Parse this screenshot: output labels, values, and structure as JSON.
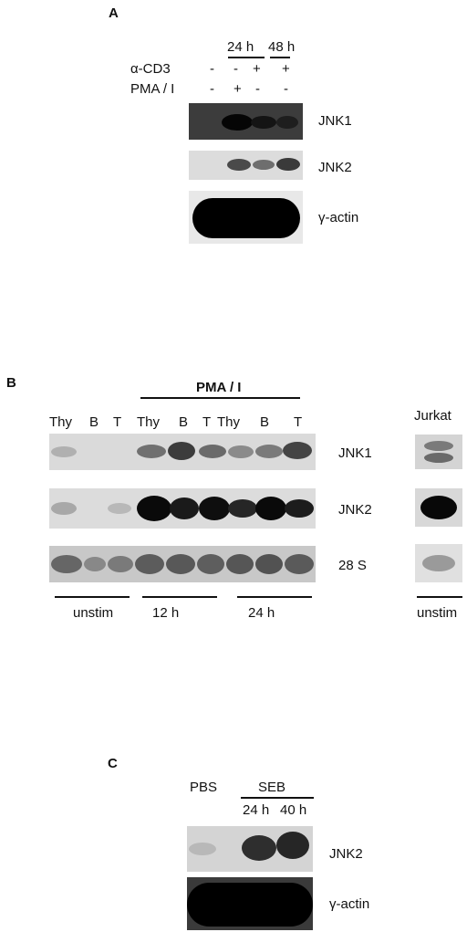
{
  "panel_a": {
    "letter": "A",
    "time_24": "24 h",
    "time_48": "48 h",
    "cd3_label": "α-CD3",
    "pma_label": "PMA / I",
    "cd3_signs": [
      "-",
      "-",
      "+",
      "+"
    ],
    "pma_signs": [
      "-",
      "+",
      "-",
      "-"
    ],
    "blots": [
      "JNK1",
      "JNK2",
      "γ-actin"
    ]
  },
  "panel_b": {
    "letter": "B",
    "pma_header": "PMA / I",
    "lanes": [
      "Thy",
      "B",
      "T",
      "Thy",
      "B",
      "T",
      "Thy",
      "B",
      "T"
    ],
    "jurkat": "Jurkat",
    "blots": [
      "JNK1",
      "JNK2",
      "28 S"
    ],
    "groups": [
      "unstim",
      "12 h",
      "24 h"
    ],
    "jurkat_group": "unstim"
  },
  "panel_c": {
    "letter": "C",
    "pbs": "PBS",
    "seb": "SEB",
    "t24": "24 h",
    "t40": "40 h",
    "blots": [
      "JNK2",
      "γ-actin"
    ]
  }
}
